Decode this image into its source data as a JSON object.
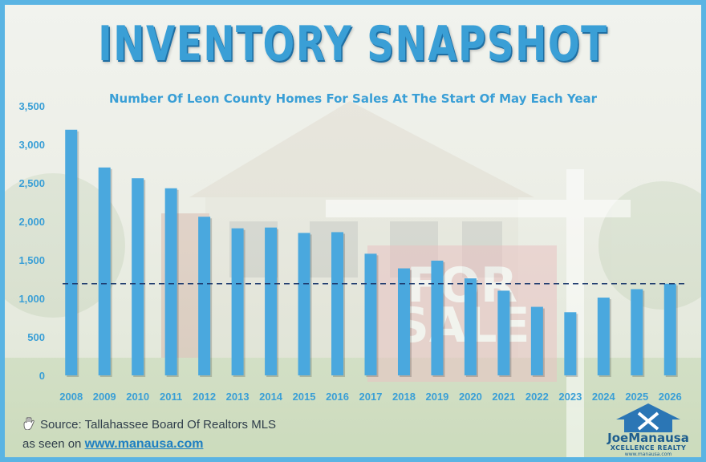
{
  "title": "INVENTORY SNAPSHOT",
  "subtitle": "Number Of Leon County Homes For Sales At The Start Of May Each Year",
  "source_text": "Source: Tallahassee Board Of Realtors MLS",
  "seen_on_text": "as seen on",
  "seen_on_link": "www.manausa.com",
  "logo": {
    "name": "JoeManausa",
    "tagline": "XCELLENCE REALTY",
    "url": "www.manausa.com"
  },
  "colors": {
    "accent": "#3a9fd6",
    "bar": "#4aa8de",
    "frame": "#5ab4e3",
    "reference_line": "#1d3a6e"
  },
  "icons": [
    "hand-icon",
    "house-logo-icon"
  ],
  "chart_data": {
    "type": "bar",
    "categories": [
      "2008",
      "2009",
      "2010",
      "2011",
      "2012",
      "2013",
      "2014",
      "2015",
      "2016",
      "2017",
      "2018",
      "2019",
      "2020",
      "2021",
      "2022",
      "2023",
      "2024",
      "2025",
      "2026"
    ],
    "values": [
      3190,
      2700,
      2560,
      2430,
      2060,
      1910,
      1920,
      1850,
      1860,
      1580,
      1390,
      1490,
      1260,
      1100,
      890,
      820,
      1010,
      1120,
      1190
    ],
    "ylim": [
      0,
      3500
    ],
    "yticks": [
      "0",
      "500",
      "1,000",
      "1,500",
      "2,000",
      "2,500",
      "3,000",
      "3,500"
    ],
    "reference_line": 1190,
    "xlabel": "",
    "ylabel": "",
    "grid": false
  }
}
